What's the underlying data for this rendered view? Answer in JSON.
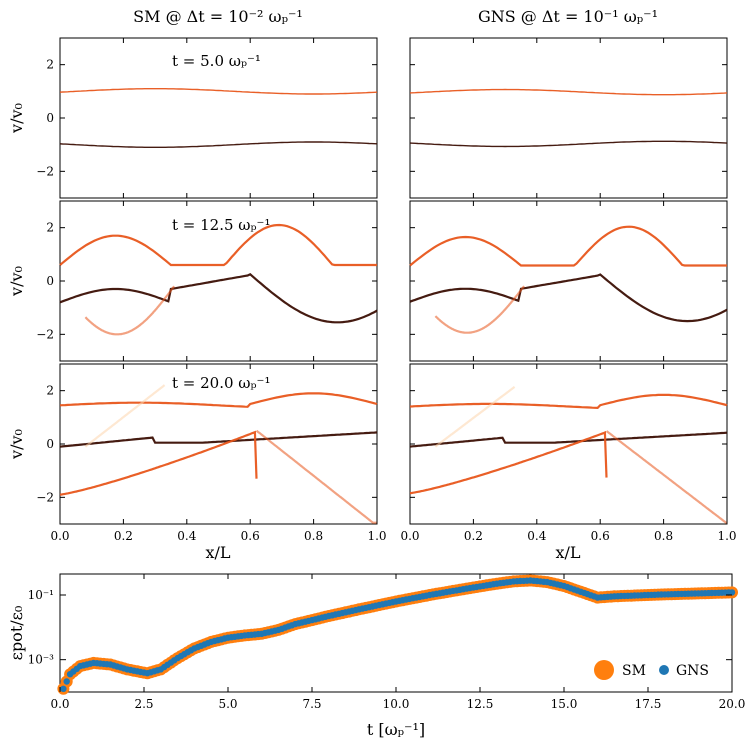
{
  "chart_data": [
    {
      "type": "scatter",
      "panel": "phase-space",
      "column_titles": [
        "SM @ Δt = 10⁻² ωₚ⁻¹",
        "GNS @ Δt = 10⁻¹ ωₚ⁻¹"
      ],
      "xlabel": "x/L",
      "ylabel": "v/v₀",
      "xlim": [
        0.0,
        1.0
      ],
      "ylim": [
        -3,
        3
      ],
      "xticks": [
        "0.0",
        "0.2",
        "0.4",
        "0.6",
        "0.8",
        "1.0"
      ],
      "yticks": [
        "2",
        "0",
        "−2"
      ],
      "rows": [
        {
          "annotation": "t = 5.0 ωₚ⁻¹",
          "time": 5.0
        },
        {
          "annotation": "t = 12.5 ωₚ⁻¹",
          "time": 12.5
        },
        {
          "annotation": "t = 20.0 ωₚ⁻¹",
          "time": 20.0
        }
      ],
      "colormap": "Oranges",
      "colors": {
        "dark": "#3b0f04",
        "mid": "#e8561b",
        "light": "#fdd5ad"
      }
    },
    {
      "type": "scatter",
      "panel": "potential-energy",
      "xlabel": "t [ωₚ⁻¹]",
      "ylabel": "εpot/ε₀",
      "yscale": "log",
      "xlim": [
        0.0,
        20.0
      ],
      "ylim_log10": [
        -4.0,
        -0.35
      ],
      "xticks": [
        "0.0",
        "2.5",
        "5.0",
        "7.5",
        "10.0",
        "12.5",
        "15.0",
        "17.5",
        "20.0"
      ],
      "yticks": [
        "10⁻¹",
        "10⁻³"
      ],
      "legend": {
        "location": "lower-right",
        "entries": [
          "SM",
          "GNS"
        ]
      },
      "series": [
        {
          "name": "SM",
          "color": "#ff7f0e",
          "t": [
            0.1,
            0.3,
            0.6,
            1.0,
            1.5,
            2.0,
            2.6,
            3.0,
            3.5,
            4.0,
            4.5,
            5.0,
            5.5,
            6.0,
            6.5,
            7.0,
            8.0,
            9.0,
            10.0,
            11.0,
            12.0,
            13.0,
            13.5,
            14.0,
            14.5,
            15.0,
            15.5,
            16.0,
            16.5,
            17.0,
            18.0,
            19.0,
            20.0
          ],
          "log10_values": [
            -3.9,
            -3.45,
            -3.2,
            -3.1,
            -3.15,
            -3.3,
            -3.42,
            -3.3,
            -2.95,
            -2.65,
            -2.45,
            -2.32,
            -2.25,
            -2.2,
            -2.08,
            -1.9,
            -1.65,
            -1.42,
            -1.2,
            -1.0,
            -0.82,
            -0.65,
            -0.58,
            -0.55,
            -0.6,
            -0.72,
            -0.9,
            -1.08,
            -1.04,
            -1.02,
            -0.98,
            -0.95,
            -0.92
          ]
        },
        {
          "name": "GNS",
          "color": "#1f77b4",
          "t": [
            0.1,
            0.3,
            0.6,
            1.0,
            1.5,
            2.0,
            2.6,
            3.0,
            3.5,
            4.0,
            4.5,
            5.0,
            5.5,
            6.0,
            6.5,
            7.0,
            8.0,
            9.0,
            10.0,
            11.0,
            12.0,
            13.0,
            13.5,
            14.0,
            14.5,
            15.0,
            15.5,
            16.0,
            16.5,
            17.0,
            18.0,
            19.0,
            20.0
          ],
          "log10_values": [
            -3.9,
            -3.45,
            -3.2,
            -3.1,
            -3.15,
            -3.3,
            -3.42,
            -3.3,
            -2.95,
            -2.65,
            -2.45,
            -2.32,
            -2.25,
            -2.2,
            -2.08,
            -1.9,
            -1.65,
            -1.42,
            -1.2,
            -1.0,
            -0.82,
            -0.65,
            -0.58,
            -0.55,
            -0.6,
            -0.72,
            -0.9,
            -1.08,
            -1.04,
            -1.02,
            -0.98,
            -0.95,
            -0.92
          ]
        }
      ]
    }
  ]
}
